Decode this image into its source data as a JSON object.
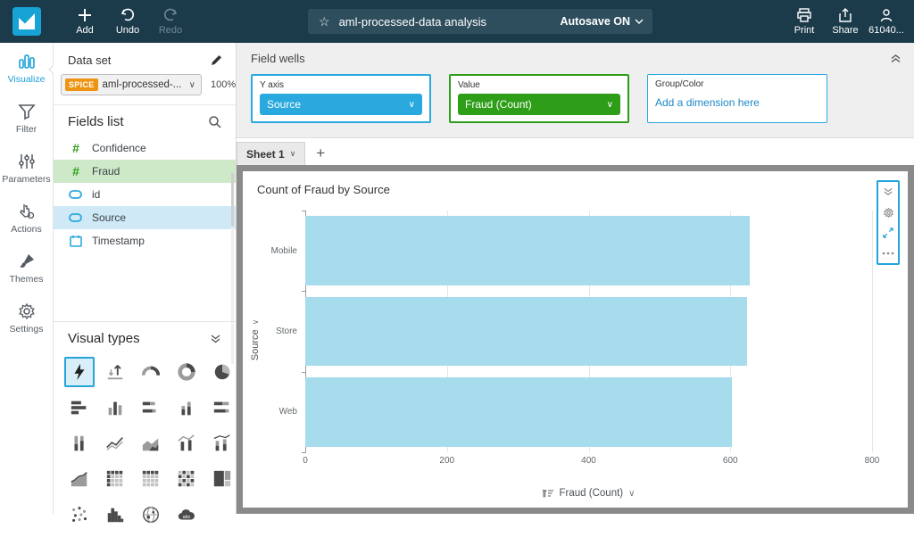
{
  "colors": {
    "topbar_bg": "#1c3b4a",
    "accent_blue": "#23a5db",
    "well_green": "#2e9e19",
    "bar_fill": "#a6dcec",
    "spice_orange": "#ee9413",
    "highlight_green": "#cde9c8",
    "highlight_blue": "#cfe9f7",
    "link_blue": "#1e88c7"
  },
  "topbar": {
    "add": "Add",
    "undo": "Undo",
    "redo": "Redo",
    "analysis_title": "aml-processed-data analysis",
    "autosave": "Autosave ON",
    "print": "Print",
    "share": "Share",
    "account": "61040..."
  },
  "nav": {
    "items": [
      {
        "label": "Visualize",
        "active": true
      },
      {
        "label": "Filter",
        "active": false
      },
      {
        "label": "Parameters",
        "active": false
      },
      {
        "label": "Actions",
        "active": false
      },
      {
        "label": "Themes",
        "active": false
      },
      {
        "label": "Settings",
        "active": false
      }
    ]
  },
  "dataset_panel": {
    "header": "Data set",
    "spice_badge": "SPICE",
    "dataset_name": "aml-processed-...",
    "ingest_percent": "100%",
    "fields_header": "Fields list",
    "fields": [
      {
        "name": "Confidence",
        "type": "numeric",
        "highlight": "none"
      },
      {
        "name": "Fraud",
        "type": "numeric",
        "highlight": "green"
      },
      {
        "name": "id",
        "type": "string",
        "highlight": "none"
      },
      {
        "name": "Source",
        "type": "string",
        "highlight": "blue"
      },
      {
        "name": "Timestamp",
        "type": "date",
        "highlight": "none"
      }
    ],
    "visual_types_header": "Visual types",
    "visual_type_icons": [
      "auto-graph",
      "kpi",
      "gauge",
      "donut-chart",
      "pie-chart",
      "horizontal-bar",
      "vertical-bar",
      "horizontal-stacked-bar",
      "vertical-stacked-bar",
      "horizontal-100-stacked-bar",
      "vertical-100-stacked-bar",
      "line-chart",
      "area-chart",
      "combo-bar-line",
      "stacked-combo-chart",
      "area-line-chart",
      "pivot-table",
      "table",
      "heat-map",
      "tree-map",
      "scatter-plot",
      "histogram",
      "points-on-map",
      "word-cloud"
    ],
    "selected_visual_type": "auto-graph"
  },
  "field_wells": {
    "header": "Field wells",
    "wells": [
      {
        "label": "Y axis",
        "value": "Source"
      },
      {
        "label": "Value",
        "value": "Fraud (Count)"
      },
      {
        "label": "Group/Color",
        "placeholder": "Add a dimension here"
      }
    ]
  },
  "sheet": {
    "tab_label": "Sheet 1",
    "add_sheet": "+"
  },
  "chart_data": {
    "type": "bar",
    "orientation": "horizontal",
    "title": "Count of Fraud by Source",
    "categories": [
      "Mobile",
      "Store",
      "Web"
    ],
    "values": [
      627,
      624,
      602
    ],
    "xlabel": "Fraud (Count)",
    "ylabel": "Source",
    "xlim": [
      0,
      800
    ],
    "xticks": [
      0,
      200,
      400,
      600,
      800
    ],
    "grid": true,
    "legend": "none",
    "bar_color": "#a6dcec"
  }
}
